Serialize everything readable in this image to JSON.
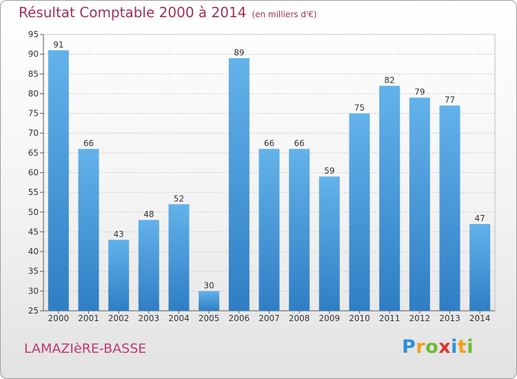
{
  "title": "Résultat Comptable 2000 à 2014",
  "subtitle": "(en milliers d'€)",
  "commune": "LAMAZIèRE-BASSE",
  "logo": {
    "letters": [
      "P",
      "r",
      "o",
      "x",
      "i",
      "t",
      "i"
    ]
  },
  "colors": {
    "title": "#a0305a",
    "bar_light": "#63b2ea",
    "bar_dark": "#2f7ec4",
    "grid": "#c8c8c8",
    "axis": "#555555"
  },
  "chart_data": {
    "type": "bar",
    "title": "Résultat Comptable 2000 à 2014",
    "subtitle": "(en milliers d'€)",
    "xlabel": "",
    "ylabel": "",
    "categories": [
      "2000",
      "2001",
      "2002",
      "2003",
      "2004",
      "2005",
      "2006",
      "2007",
      "2008",
      "2009",
      "2010",
      "2011",
      "2012",
      "2013",
      "2014"
    ],
    "values": [
      91,
      66,
      43,
      48,
      52,
      30,
      89,
      66,
      66,
      59,
      75,
      82,
      79,
      77,
      47
    ],
    "ylim": [
      25,
      95
    ],
    "yticks": [
      25,
      30,
      35,
      40,
      45,
      50,
      55,
      60,
      65,
      70,
      75,
      80,
      85,
      90,
      95
    ],
    "grid": true,
    "data_labels": true
  }
}
